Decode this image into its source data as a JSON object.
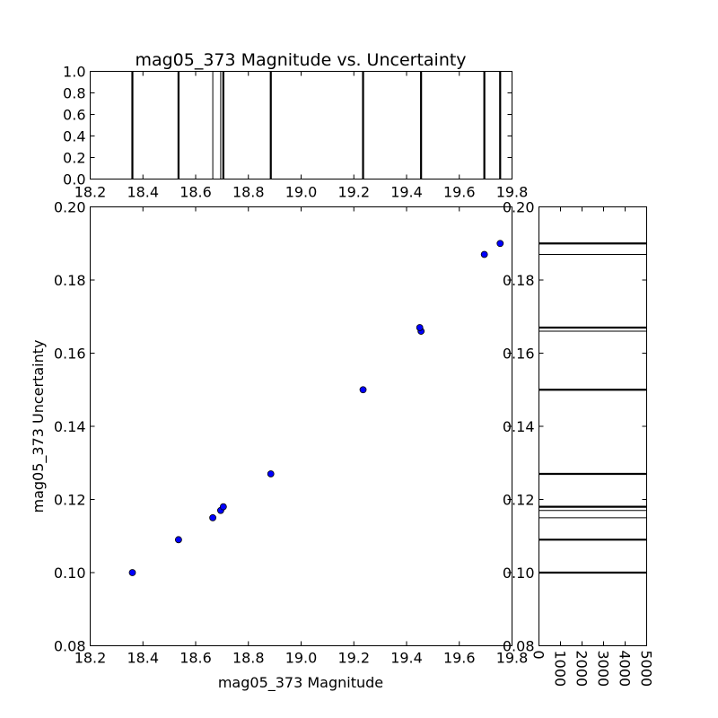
{
  "chart_data": {
    "type": "scatter",
    "title": "mag05_373 Magnitude vs. Uncertainty",
    "xlabel": "mag05_373 Magnitude",
    "ylabel": "mag05_373 Uncertainty",
    "xlim": [
      18.2,
      19.8
    ],
    "ylim": [
      0.08,
      0.2
    ],
    "x_ticks": [
      "18.2",
      "18.4",
      "18.6",
      "18.8",
      "19.0",
      "19.2",
      "19.4",
      "19.6",
      "19.8"
    ],
    "y_ticks": [
      "0.08",
      "0.10",
      "0.12",
      "0.14",
      "0.16",
      "0.18",
      "0.20"
    ],
    "series": [
      {
        "marker_color": "#0000ff",
        "points": [
          {
            "x": 18.36,
            "y": 0.1
          },
          {
            "x": 18.535,
            "y": 0.109
          },
          {
            "x": 18.665,
            "y": 0.115
          },
          {
            "x": 18.695,
            "y": 0.117
          },
          {
            "x": 18.705,
            "y": 0.118
          },
          {
            "x": 18.885,
            "y": 0.127
          },
          {
            "x": 19.235,
            "y": 0.15
          },
          {
            "x": 19.455,
            "y": 0.166
          },
          {
            "x": 19.45,
            "y": 0.167
          },
          {
            "x": 19.695,
            "y": 0.187
          },
          {
            "x": 19.755,
            "y": 0.19
          }
        ]
      }
    ],
    "top_histogram": {
      "ylim": [
        0.0,
        1.0
      ],
      "y_ticks": [
        "0.0",
        "0.2",
        "0.4",
        "0.6",
        "0.8",
        "1.0"
      ],
      "x_ticks": [
        "18.2",
        "18.4",
        "18.6",
        "18.8",
        "19.0",
        "19.2",
        "19.4",
        "19.6",
        "19.8"
      ],
      "lines": [
        {
          "x": 18.36,
          "bold": true
        },
        {
          "x": 18.535,
          "bold": true
        },
        {
          "x": 18.665,
          "bold": false
        },
        {
          "x": 18.695,
          "bold": false
        },
        {
          "x": 18.705,
          "bold": true
        },
        {
          "x": 18.885,
          "bold": true
        },
        {
          "x": 19.235,
          "bold": true
        },
        {
          "x": 19.455,
          "bold": true
        },
        {
          "x": 19.695,
          "bold": true
        },
        {
          "x": 19.755,
          "bold": true
        }
      ]
    },
    "right_histogram": {
      "xlim": [
        0,
        5000
      ],
      "x_ticks": [
        "0",
        "1000",
        "2000",
        "3000",
        "4000",
        "5000"
      ],
      "y_ticks": [
        "0.08",
        "0.10",
        "0.12",
        "0.14",
        "0.16",
        "0.18",
        "0.20"
      ],
      "lines": [
        {
          "y": 0.1,
          "bold": true
        },
        {
          "y": 0.109,
          "bold": true
        },
        {
          "y": 0.115,
          "bold": false
        },
        {
          "y": 0.117,
          "bold": false
        },
        {
          "y": 0.118,
          "bold": true
        },
        {
          "y": 0.127,
          "bold": true
        },
        {
          "y": 0.15,
          "bold": true
        },
        {
          "y": 0.166,
          "bold": false
        },
        {
          "y": 0.167,
          "bold": true
        },
        {
          "y": 0.187,
          "bold": false
        },
        {
          "y": 0.19,
          "bold": true
        }
      ]
    }
  }
}
